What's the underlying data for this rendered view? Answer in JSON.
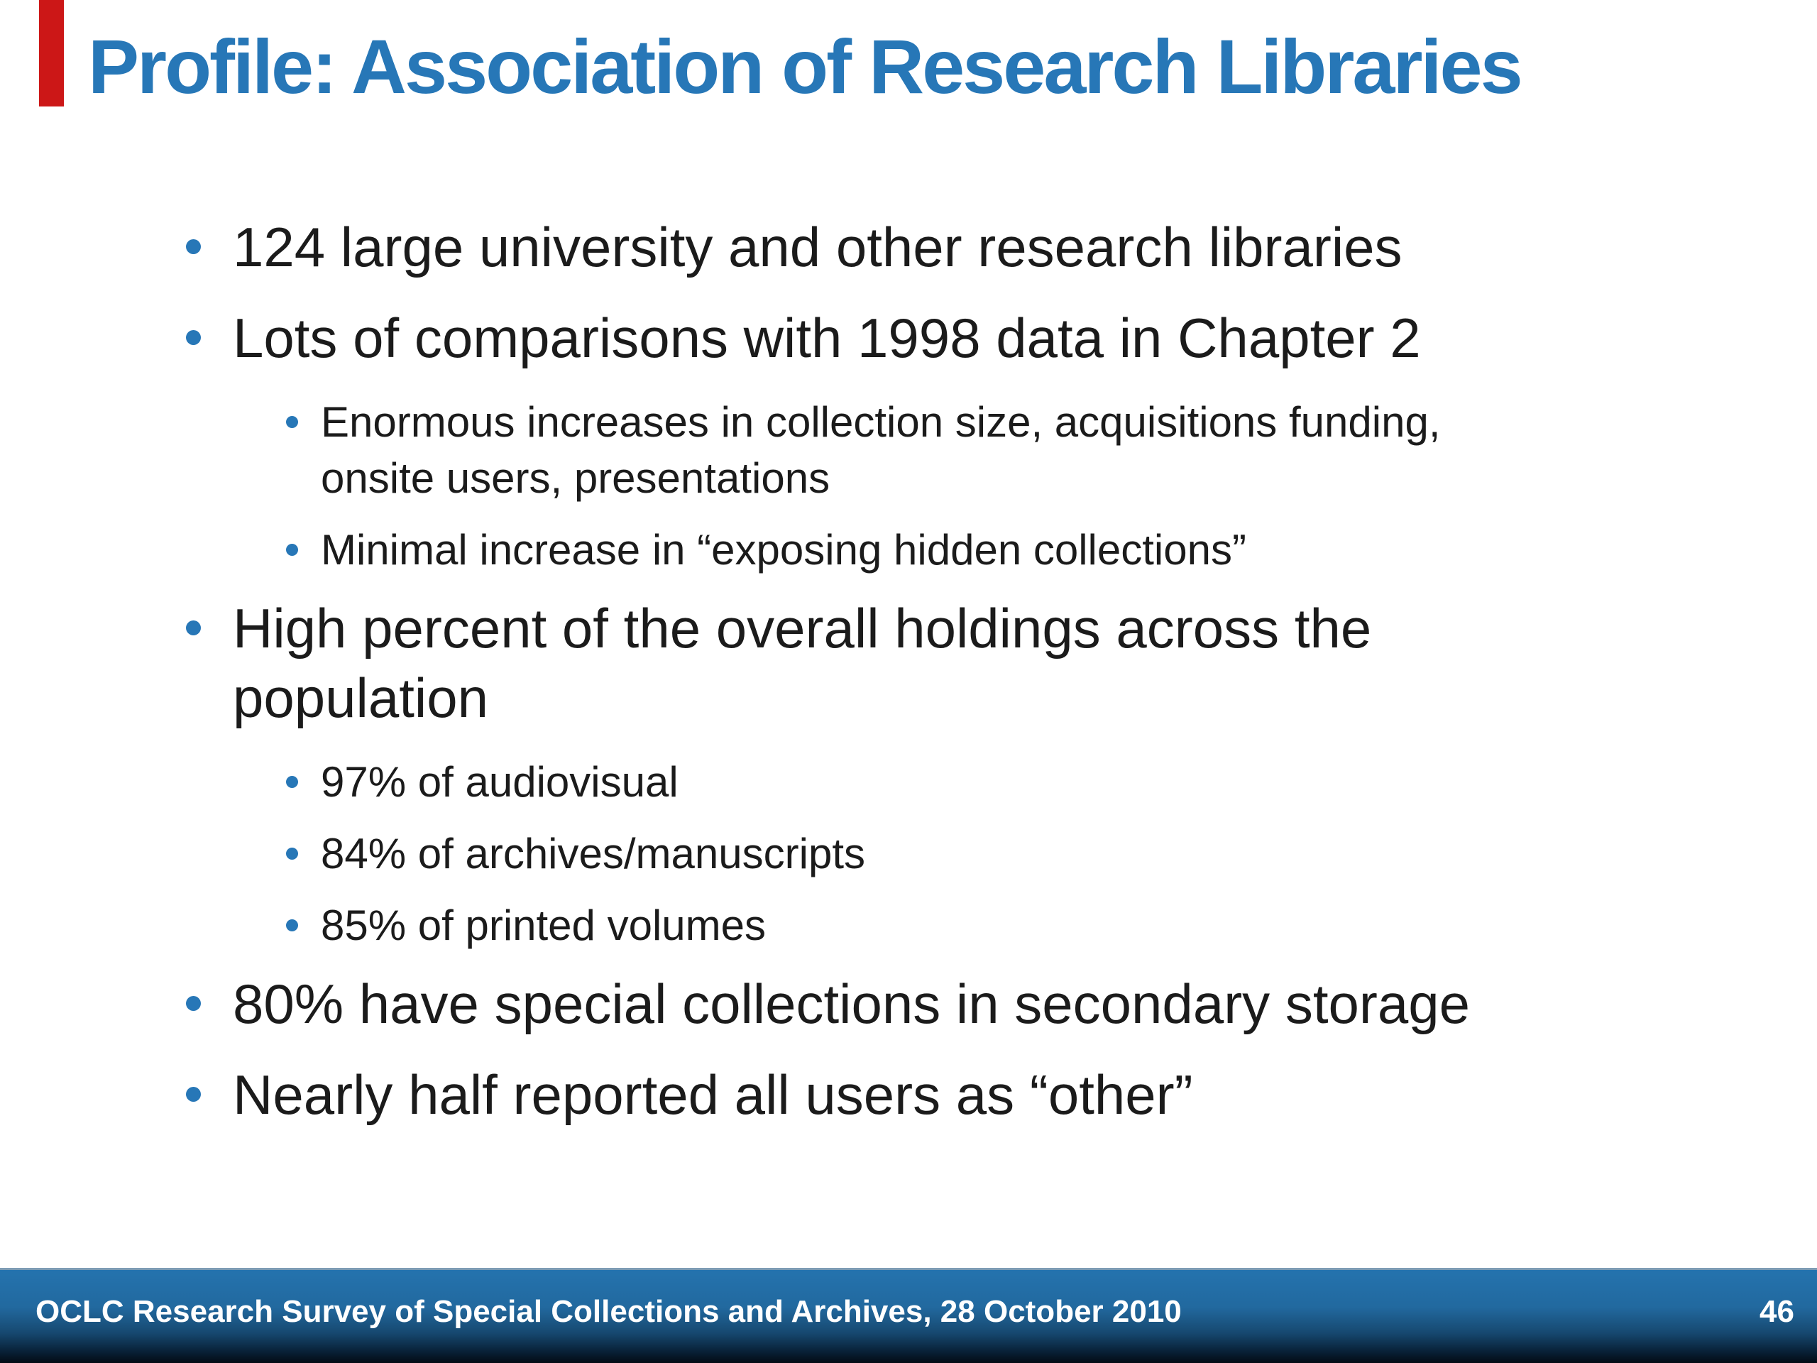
{
  "slide": {
    "title": "Profile: Association of Research Libraries"
  },
  "bullets": [
    {
      "level": 1,
      "lines": [
        "124 large university and other research libraries"
      ]
    },
    {
      "level": 1,
      "lines": [
        "Lots of comparisons with 1998 data in Chapter 2"
      ]
    },
    {
      "level": 2,
      "lines": [
        "Enormous increases in collection size, acquisitions funding,",
        "onsite users, presentations"
      ]
    },
    {
      "level": 2,
      "lines": [
        "Minimal increase in “exposing hidden collections”"
      ]
    },
    {
      "level": 1,
      "lines": [
        "High percent of the overall holdings across the",
        "population"
      ]
    },
    {
      "level": 2,
      "lines": [
        "97% of audiovisual"
      ]
    },
    {
      "level": 2,
      "lines": [
        "84% of archives/manuscripts"
      ]
    },
    {
      "level": 2,
      "lines": [
        "85% of printed volumes"
      ]
    },
    {
      "level": 1,
      "lines": [
        "80% have special collections in secondary storage"
      ]
    },
    {
      "level": 1,
      "lines": [
        "Nearly half reported all users as “other”"
      ]
    }
  ],
  "footer": {
    "text": "OCLC Research Survey of Special Collections and Archives, 28 October 2010",
    "page_number": "46"
  },
  "colors": {
    "accent_blue": "#2777b7",
    "body_text": "#1b1b1b",
    "footer_gradient_top": "#2473ae",
    "footer_gradient_bottom": "#030b14",
    "footer_text": "#ffffff",
    "marker_red": "#cc1717"
  }
}
